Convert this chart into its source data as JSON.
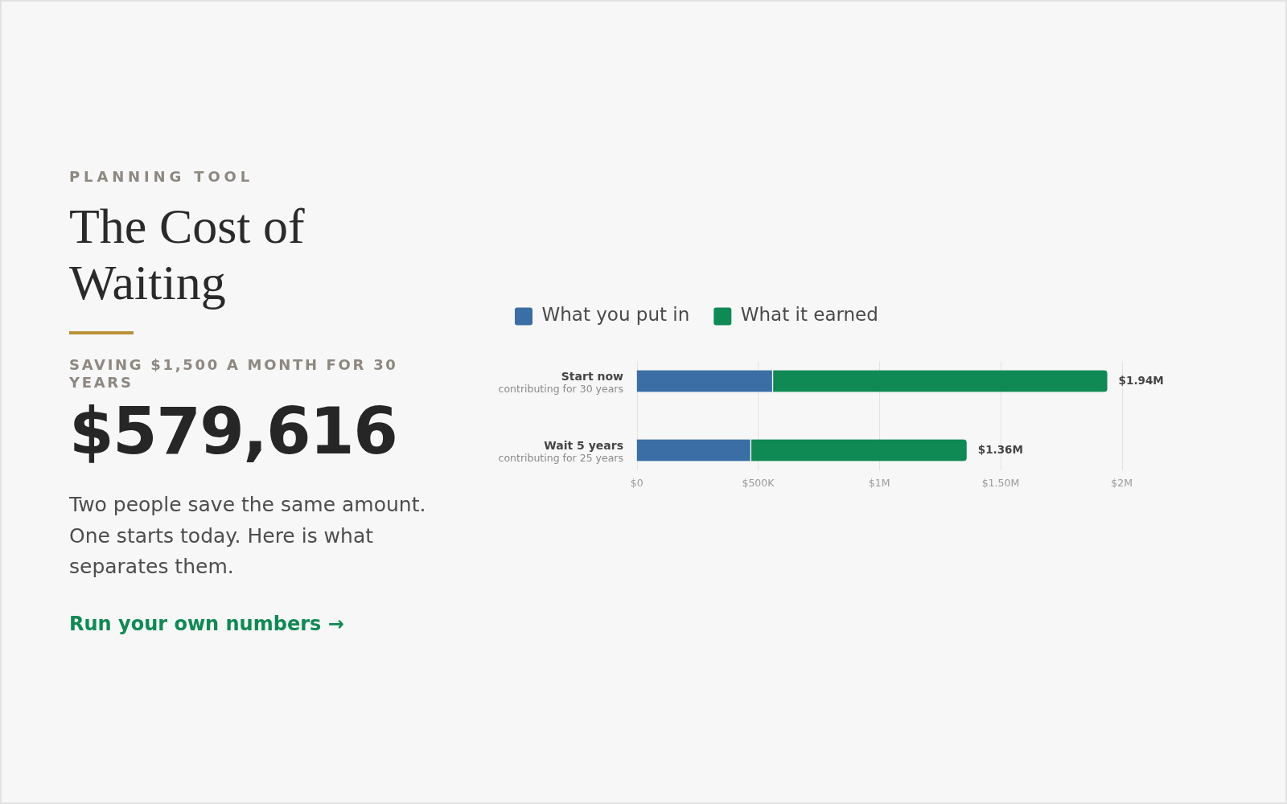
{
  "chart_data": {
    "type": "bar",
    "orientation": "horizontal",
    "stacked": true,
    "title": "The Cost of Waiting",
    "subtitle": "Two people save the same amount. One starts today. Here is what separates them.",
    "annotations": [
      "PLANNING TOOL",
      "SAVING $1,500 A MONTH FOR 30 YEARS",
      "$579,616",
      "Run your own numbers →"
    ],
    "categories": [
      "Start now\ncontributing for 30 years",
      "Wait 5 years\ncontributing for 25 years"
    ],
    "series": [
      {
        "name": "What you put in",
        "color": "#3a6ea5",
        "values": [
          560000,
          470000
        ]
      },
      {
        "name": "What it earned",
        "color": "#0f8a55",
        "values": [
          1380000,
          890000
        ]
      }
    ],
    "xlim": [
      0,
      2000000
    ],
    "xticks": [
      {
        "value": 0,
        "label": "$0"
      },
      {
        "value": 500000,
        "label": "$500K"
      },
      {
        "value": 1000000,
        "label": "$1M"
      },
      {
        "value": 1500000,
        "label": "$1.50M"
      },
      {
        "value": 2000000,
        "label": "$2M"
      }
    ],
    "totals": [
      "$1.94M",
      "$1.36M"
    ],
    "grid": "x",
    "legend": "top left"
  }
}
